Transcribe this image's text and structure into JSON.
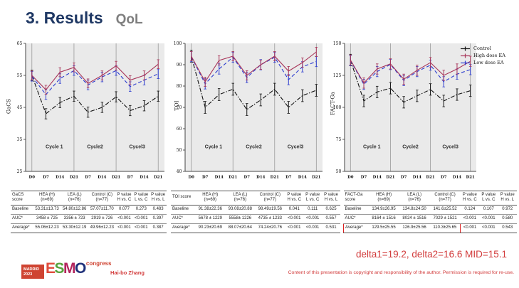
{
  "title": {
    "main": "3. Results",
    "sub": "QoL"
  },
  "chart_data": [
    {
      "type": "line",
      "title": "",
      "xlabel": "",
      "ylabel": "GaCS",
      "ylim": [
        25,
        65
      ],
      "yticks": [
        25,
        35,
        45,
        55,
        65
      ],
      "grid": false,
      "legend_position": "none",
      "categories": [
        "D0",
        "D7",
        "D14",
        "D21",
        "D7",
        "D14",
        "D21",
        "D7",
        "D14",
        "D21"
      ],
      "cycle_labels": [
        "Cycle 1",
        "Cycle2",
        "Cycel3"
      ],
      "separators": [
        0,
        3,
        6,
        9
      ],
      "series": [
        {
          "name": "Control",
          "color": "#111111",
          "dash": "dashdot",
          "err": 1.6,
          "values": [
            55,
            43,
            46.5,
            48.5,
            43.5,
            45,
            48.3,
            44,
            45.5,
            48.5
          ]
        },
        {
          "name": "Low dose EA",
          "color": "#2c3ccf",
          "dash": "dashed",
          "err": 1.5,
          "values": [
            54.7,
            49,
            54,
            56.5,
            52,
            54.5,
            56.5,
            51.5,
            53.5,
            55.5
          ]
        },
        {
          "name": "High dose EA",
          "color": "#a8365a",
          "dash": "solid",
          "err": 1.4,
          "values": [
            55,
            50.5,
            56,
            57.5,
            52.5,
            55,
            58,
            53.5,
            55,
            58.5
          ]
        }
      ]
    },
    {
      "type": "line",
      "title": "",
      "xlabel": "",
      "ylabel": "TOI",
      "ylim": [
        40,
        100
      ],
      "yticks": [
        40,
        50,
        60,
        70,
        80,
        90,
        100
      ],
      "grid": false,
      "legend_position": "none",
      "categories": [
        "D0",
        "D7",
        "D14",
        "D21",
        "D7",
        "D14",
        "D21",
        "D7",
        "D14",
        "D21"
      ],
      "cycle_labels": [
        "Cycle 1",
        "Cycle2",
        "Cycel3"
      ],
      "separators": [
        0,
        3,
        6,
        9
      ],
      "series": [
        {
          "name": "Control",
          "color": "#111111",
          "dash": "dashdot",
          "err": 2.8,
          "values": [
            94,
            70,
            76,
            78.5,
            69,
            73.5,
            78.5,
            70,
            75.5,
            78
          ]
        },
        {
          "name": "Low dose EA",
          "color": "#2c3ccf",
          "dash": "dashed",
          "err": 2.4,
          "values": [
            93.8,
            81,
            88,
            93.5,
            84,
            90,
            93.5,
            83,
            89,
            91.5
          ]
        },
        {
          "name": "High dose EA",
          "color": "#a8365a",
          "dash": "solid",
          "err": 2.2,
          "values": [
            94,
            82,
            92,
            94,
            85,
            90,
            94,
            87,
            91,
            96
          ]
        }
      ]
    },
    {
      "type": "line",
      "title": "",
      "xlabel": "",
      "ylabel": "FACT-Ga",
      "ylim": [
        50,
        150
      ],
      "yticks": [
        50,
        75,
        100,
        125,
        150
      ],
      "grid": false,
      "legend_position": "right-top",
      "categories": [
        "D0",
        "D7",
        "D14",
        "D21",
        "D7",
        "D14",
        "D21",
        "D7",
        "D14",
        "D21"
      ],
      "cycle_labels": [
        "Cycle 1",
        "Cycle2",
        "Cycel3"
      ],
      "separators": [
        0,
        3,
        6,
        9
      ],
      "series": [
        {
          "name": "Control",
          "color": "#111111",
          "dash": "dashdot",
          "err": 4.5,
          "values": [
            137,
            105,
            112,
            115,
            104,
            109,
            114,
            105,
            110,
            113
          ]
        },
        {
          "name": "Low dose EA",
          "color": "#2c3ccf",
          "dash": "dashed",
          "err": 4.0,
          "values": [
            136.6,
            118,
            128,
            133.5,
            121,
            128,
            133,
            120,
            126,
            129.5
          ]
        },
        {
          "name": "High dose EA",
          "color": "#a8365a",
          "dash": "solid",
          "err": 4.0,
          "values": [
            137,
            119,
            130,
            134,
            122,
            129,
            135,
            125,
            130,
            136
          ]
        }
      ],
      "legend": [
        {
          "label": "Control",
          "color": "#111111"
        },
        {
          "label": "High dose EA",
          "color": "#a8365a"
        },
        {
          "label": "Low dose EA",
          "color": "#2c3ccf"
        }
      ]
    }
  ],
  "tables": [
    {
      "header": [
        "GaCS\nscore",
        "HEA (H)\n(n=69)",
        "LEA (L)\n(n=76)",
        "Control (C)\n(n=77)",
        "P value\nH vs. C",
        "P value\nL vs. C",
        "P value\nH vs. L"
      ],
      "rows": [
        [
          "Baseline",
          "53.31±13.73",
          "54.80±12.86",
          "57.07±11.70",
          "0.077",
          "0.273",
          "0.483"
        ],
        [
          "AUC*",
          "3458 ± 725",
          "3356 ± 723",
          "2919 ± 726",
          "<0.001",
          "<0.001",
          "0.397"
        ],
        [
          "Average*",
          "55.06±12.23",
          "53.30±12.19",
          "49.96±12.23",
          "<0.001",
          "<0.001",
          "0.387"
        ]
      ],
      "highlight": null
    },
    {
      "header": [
        "TOI score",
        "HEA (H)\n(n=69)",
        "LEA (L)\n(n=76)",
        "Control (C)\n(n=77)",
        "P value\nH vs. C",
        "P value\nL vs. C",
        "P value\nH vs. L"
      ],
      "rows": [
        [
          "Baseline",
          "91.38±22.36",
          "93.08±20.88",
          "98.49±19.56",
          "0.041",
          "0.111",
          "0.625"
        ],
        [
          "AUC*",
          "5678 ± 1229",
          "5558± 1226",
          "4735 ± 1233",
          "<0.001",
          "<0.001",
          "0.557"
        ],
        [
          "Average*",
          "90.23±20.69",
          "88.07±20.64",
          "74.24±20.76",
          "<0.001",
          "<0.001",
          "0.531"
        ]
      ],
      "highlight": null
    },
    {
      "header": [
        "FACT-Ga\nscore",
        "HEA (H)\n(n=69)",
        "LEA (L)\n(n=76)",
        "Control (C)\n(n=77)",
        "P value\nH vs. C",
        "P value\nL vs. C",
        "P value\nH vs. L"
      ],
      "rows": [
        [
          "Baseline",
          "134.9±26.95",
          "134.8±24.50",
          "141.6±25.52",
          "0.124",
          "0.107",
          "0.972"
        ],
        [
          "AUC*",
          "8164 ± 1516",
          "8024 ± 1516",
          "7029 ± 1521",
          "<0.001",
          "<0.001",
          "0.580"
        ],
        [
          "Average*",
          "129.5±25.55",
          "126.9±25.56",
          "110.3±25.65",
          "<0.001",
          "<0.001",
          "0.543"
        ]
      ],
      "highlight": {
        "row": 2,
        "col_start": 0,
        "col_end": 3
      }
    }
  ],
  "annotation": {
    "delta": "delta1=19.2, delta2=16.6  MID=15.1"
  },
  "footer": {
    "logo": {
      "city": "MADRID",
      "year": "2023",
      "letters": [
        "E",
        "S",
        "M",
        "O"
      ],
      "letter_colors": [
        "#e04c3c",
        "#57a23e",
        "#b2245c",
        "#20317a"
      ],
      "congress": "congress"
    },
    "author": "Hai-bo Zhang",
    "copyright": "Content of this presentation is copyright and responsibility of the author. Permission is required for re-use."
  },
  "colors": {
    "accent_red": "#d23b3b",
    "title_navy": "#1f3864",
    "subtitle_gray": "#7f7f7f",
    "highlight_red": "#dd1f1f"
  }
}
